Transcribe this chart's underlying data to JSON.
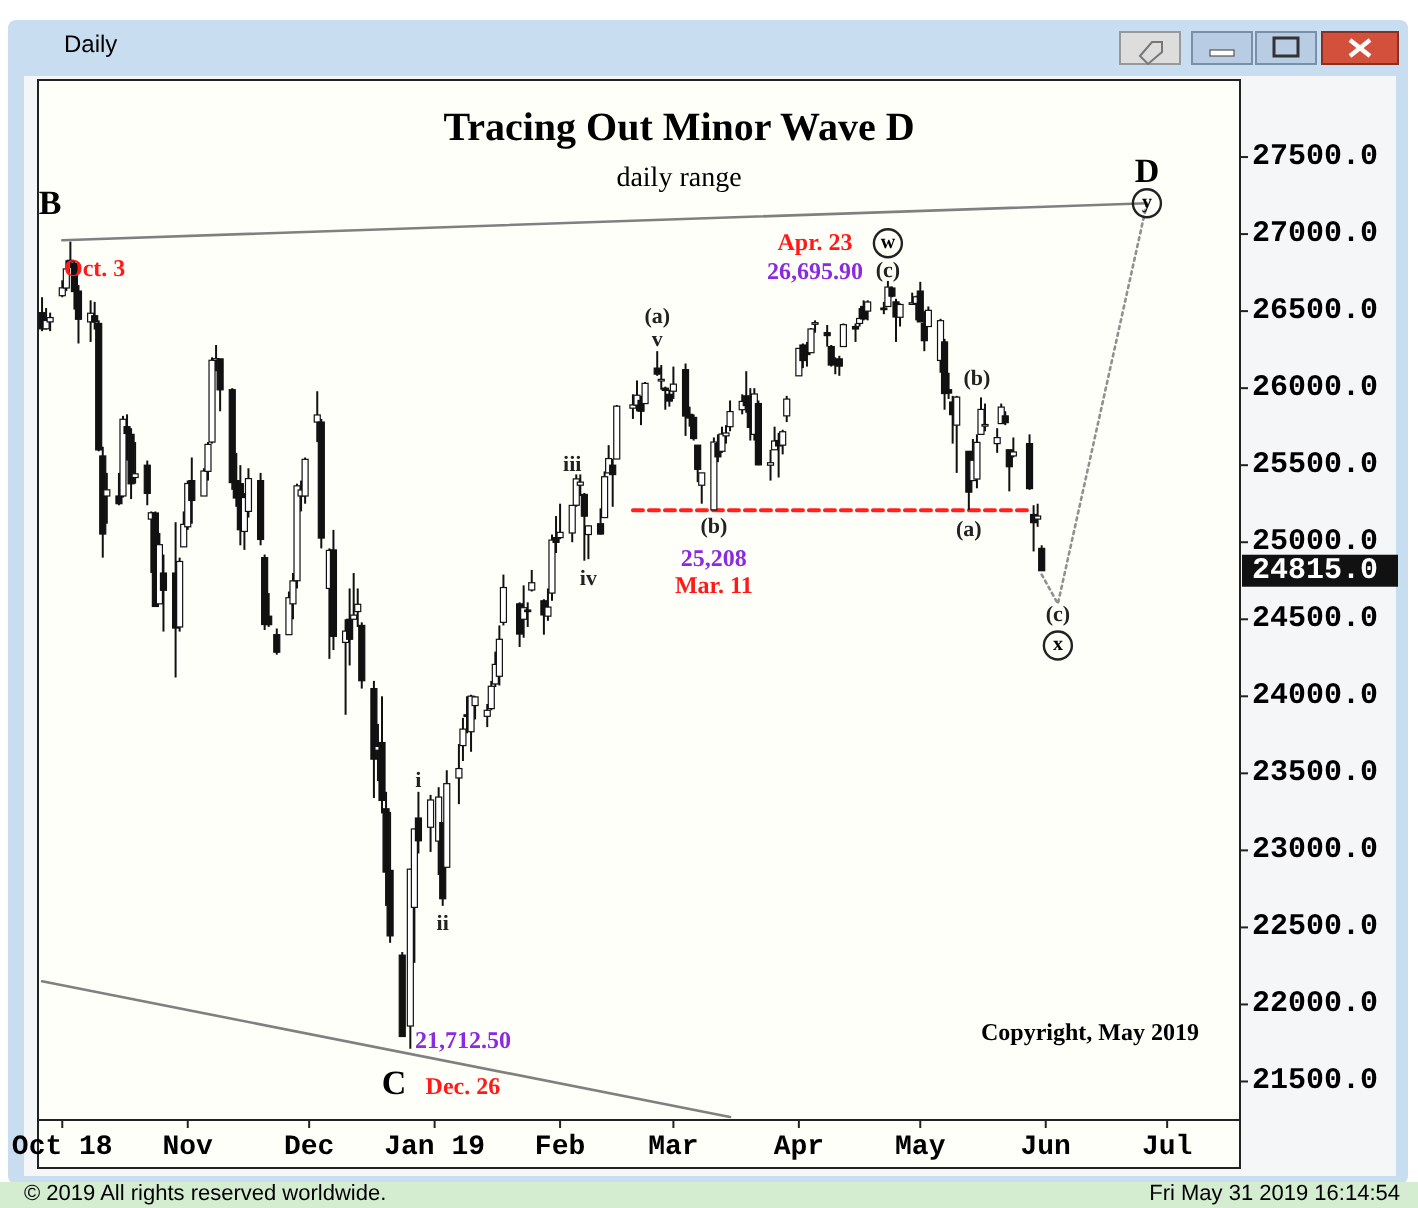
{
  "chart_data": {
    "type": "candlestick",
    "title": "Tracing Out Minor Wave D",
    "subtitle": "daily range",
    "xlim": [
      "2018-09-25",
      "2019-07-19"
    ],
    "ylim": [
      21250,
      28000
    ],
    "xticks": [
      {
        "value": "2018-10-01",
        "label": "Oct 18"
      },
      {
        "value": "2018-11-01",
        "label": "Nov"
      },
      {
        "value": "2018-12-01",
        "label": "Dec"
      },
      {
        "value": "2019-01-01",
        "label": "Jan 19"
      },
      {
        "value": "2019-02-01",
        "label": "Feb"
      },
      {
        "value": "2019-03-01",
        "label": "Mar"
      },
      {
        "value": "2019-04-01",
        "label": "Apr"
      },
      {
        "value": "2019-05-01",
        "label": "May"
      },
      {
        "value": "2019-06-01",
        "label": "Jun"
      },
      {
        "value": "2019-07-01",
        "label": "Jul"
      }
    ],
    "yticks": [
      {
        "value": 21500,
        "label": "21500.0"
      },
      {
        "value": 22000,
        "label": "22000.0"
      },
      {
        "value": 22500,
        "label": "22500.0"
      },
      {
        "value": 23000,
        "label": "23000.0"
      },
      {
        "value": 23500,
        "label": "23500.0"
      },
      {
        "value": 24000,
        "label": "24000.0"
      },
      {
        "value": 24500,
        "label": "24500.0"
      },
      {
        "value": 25000,
        "label": "25000.0"
      },
      {
        "value": 25500,
        "label": "25500.0"
      },
      {
        "value": 26000,
        "label": "26000.0"
      },
      {
        "value": 26500,
        "label": "26500.0"
      },
      {
        "value": 27000,
        "label": "27000.0"
      },
      {
        "value": 27500,
        "label": "27500.0"
      }
    ],
    "x": [
      "2018-09-26",
      "2018-09-27",
      "2018-09-28",
      "2018-10-01",
      "2018-10-02",
      "2018-10-03",
      "2018-10-04",
      "2018-10-05",
      "2018-10-08",
      "2018-10-09",
      "2018-10-10",
      "2018-10-11",
      "2018-10-12",
      "2018-10-15",
      "2018-10-16",
      "2018-10-17",
      "2018-10-18",
      "2018-10-19",
      "2018-10-22",
      "2018-10-23",
      "2018-10-24",
      "2018-10-25",
      "2018-10-26",
      "2018-10-29",
      "2018-10-30",
      "2018-10-31",
      "2018-11-01",
      "2018-11-02",
      "2018-11-05",
      "2018-11-06",
      "2018-11-07",
      "2018-11-08",
      "2018-11-09",
      "2018-11-12",
      "2018-11-13",
      "2018-11-14",
      "2018-11-15",
      "2018-11-16",
      "2018-11-19",
      "2018-11-20",
      "2018-11-21",
      "2018-11-23",
      "2018-11-26",
      "2018-11-27",
      "2018-11-28",
      "2018-11-29",
      "2018-11-30",
      "2018-12-03",
      "2018-12-04",
      "2018-12-06",
      "2018-12-07",
      "2018-12-10",
      "2018-12-11",
      "2018-12-12",
      "2018-12-13",
      "2018-12-14",
      "2018-12-17",
      "2018-12-18",
      "2018-12-19",
      "2018-12-20",
      "2018-12-21",
      "2018-12-24",
      "2018-12-26",
      "2018-12-27",
      "2018-12-28",
      "2018-12-31",
      "2019-01-02",
      "2019-01-03",
      "2019-01-04",
      "2019-01-07",
      "2019-01-08",
      "2019-01-09",
      "2019-01-10",
      "2019-01-11",
      "2019-01-14",
      "2019-01-15",
      "2019-01-16",
      "2019-01-17",
      "2019-01-18",
      "2019-01-22",
      "2019-01-23",
      "2019-01-24",
      "2019-01-25",
      "2019-01-28",
      "2019-01-29",
      "2019-01-30",
      "2019-01-31",
      "2019-02-01",
      "2019-02-04",
      "2019-02-05",
      "2019-02-06",
      "2019-02-07",
      "2019-02-08",
      "2019-02-11",
      "2019-02-12",
      "2019-02-13",
      "2019-02-14",
      "2019-02-15",
      "2019-02-19",
      "2019-02-20",
      "2019-02-21",
      "2019-02-22",
      "2019-02-25",
      "2019-02-26",
      "2019-02-27",
      "2019-02-28",
      "2019-03-01",
      "2019-03-04",
      "2019-03-05",
      "2019-03-06",
      "2019-03-07",
      "2019-03-08",
      "2019-03-11",
      "2019-03-12",
      "2019-03-13",
      "2019-03-14",
      "2019-03-15",
      "2019-03-18",
      "2019-03-19",
      "2019-03-20",
      "2019-03-21",
      "2019-03-22",
      "2019-03-25",
      "2019-03-26",
      "2019-03-27",
      "2019-03-28",
      "2019-03-29",
      "2019-04-01",
      "2019-04-02",
      "2019-04-03",
      "2019-04-04",
      "2019-04-05",
      "2019-04-08",
      "2019-04-09",
      "2019-04-10",
      "2019-04-11",
      "2019-04-12",
      "2019-04-15",
      "2019-04-16",
      "2019-04-17",
      "2019-04-18",
      "2019-04-22",
      "2019-04-23",
      "2019-04-24",
      "2019-04-25",
      "2019-04-26",
      "2019-04-29",
      "2019-04-30",
      "2019-05-01",
      "2019-05-02",
      "2019-05-03",
      "2019-05-06",
      "2019-05-07",
      "2019-05-08",
      "2019-05-09",
      "2019-05-10",
      "2019-05-13",
      "2019-05-14",
      "2019-05-15",
      "2019-05-16",
      "2019-05-17",
      "2019-05-20",
      "2019-05-21",
      "2019-05-22",
      "2019-05-23",
      "2019-05-24",
      "2019-05-28",
      "2019-05-29",
      "2019-05-30",
      "2019-05-31"
    ],
    "ohlc": [
      [
        26490,
        26590,
        26370,
        26385
      ],
      [
        26385,
        26520,
        26380,
        26439
      ],
      [
        26430,
        26490,
        26370,
        26458
      ],
      [
        26600,
        26700,
        26590,
        26651
      ],
      [
        26650,
        26830,
        26630,
        26774
      ],
      [
        26830,
        26951,
        26780,
        26828
      ],
      [
        26810,
        26830,
        26510,
        26627
      ],
      [
        26630,
        26670,
        26290,
        26447
      ],
      [
        26430,
        26570,
        26300,
        26486
      ],
      [
        26470,
        26560,
        26380,
        26430
      ],
      [
        26420,
        26440,
        25590,
        25599
      ],
      [
        25560,
        25620,
        24900,
        25053
      ],
      [
        25300,
        25450,
        25120,
        25340
      ],
      [
        25300,
        25450,
        25240,
        25250
      ],
      [
        25300,
        25820,
        25290,
        25798
      ],
      [
        25750,
        25830,
        25530,
        25706
      ],
      [
        25700,
        25740,
        25280,
        25379
      ],
      [
        25420,
        25650,
        25380,
        25444
      ],
      [
        25500,
        25530,
        25240,
        25317
      ],
      [
        25150,
        25200,
        24800,
        25191
      ],
      [
        25190,
        25200,
        24580,
        24583
      ],
      [
        24600,
        25060,
        24600,
        24984
      ],
      [
        24800,
        24920,
        24420,
        24688
      ],
      [
        24800,
        25130,
        24122,
        24443
      ],
      [
        24450,
        24900,
        24420,
        24875
      ],
      [
        24970,
        25200,
        24970,
        25116
      ],
      [
        25100,
        25400,
        25080,
        25381
      ],
      [
        25400,
        25550,
        25120,
        25271
      ],
      [
        25300,
        25480,
        25300,
        25462
      ],
      [
        25460,
        25650,
        25400,
        25635
      ],
      [
        25650,
        26200,
        25640,
        26181
      ],
      [
        26180,
        26280,
        26110,
        26191
      ],
      [
        26190,
        26190,
        25850,
        25989
      ],
      [
        25990,
        26000,
        25340,
        25387
      ],
      [
        25400,
        25580,
        25230,
        25287
      ],
      [
        25380,
        25500,
        24980,
        25081
      ],
      [
        25070,
        25320,
        24950,
        25290
      ],
      [
        25200,
        25480,
        25160,
        25413
      ],
      [
        25400,
        25450,
        24980,
        25018
      ],
      [
        24900,
        24920,
        24430,
        24466
      ],
      [
        24520,
        24670,
        24450,
        24465
      ],
      [
        24400,
        24440,
        24270,
        24286
      ],
      [
        24400,
        24680,
        24400,
        24640
      ],
      [
        24600,
        24800,
        24500,
        24749
      ],
      [
        24750,
        25380,
        24700,
        25366
      ],
      [
        25300,
        25400,
        25200,
        25339
      ],
      [
        25300,
        25550,
        25250,
        25538
      ],
      [
        25780,
        25980,
        25650,
        25826
      ],
      [
        25780,
        25800,
        24960,
        25027
      ],
      [
        24700,
        24960,
        24243,
        24947
      ],
      [
        24950,
        25080,
        24300,
        24389
      ],
      [
        24350,
        24500,
        23880,
        24423
      ],
      [
        24500,
        24700,
        24200,
        24370
      ],
      [
        24500,
        24800,
        24500,
        24527
      ],
      [
        24550,
        24700,
        24450,
        24597
      ],
      [
        24460,
        24480,
        24050,
        24101
      ],
      [
        24050,
        24100,
        23340,
        23592
      ],
      [
        23650,
        23820,
        23450,
        23675
      ],
      [
        23700,
        24000,
        23240,
        23324
      ],
      [
        23270,
        23380,
        22640,
        22859
      ],
      [
        22870,
        23250,
        22400,
        22445
      ],
      [
        22320,
        22340,
        21790,
        21792
      ],
      [
        21860,
        22880,
        21712.5,
        22878
      ],
      [
        22630,
        23140,
        22270,
        23139
      ],
      [
        23210,
        23380,
        22980,
        23062
      ],
      [
        23150,
        23360,
        22990,
        23327
      ],
      [
        23060,
        23410,
        22840,
        23346
      ],
      [
        23180,
        23180,
        22640,
        22686
      ],
      [
        22890,
        23520,
        22890,
        23433
      ],
      [
        23470,
        23690,
        23300,
        23531
      ],
      [
        23680,
        23860,
        23580,
        23787
      ],
      [
        23880,
        24000,
        23760,
        23879
      ],
      [
        23770,
        24010,
        23640,
        24001
      ],
      [
        23940,
        24000,
        23850,
        23996
      ],
      [
        23870,
        23950,
        23800,
        23909
      ],
      [
        23920,
        24100,
        23910,
        24065
      ],
      [
        24080,
        24290,
        24060,
        24207
      ],
      [
        24130,
        24460,
        24070,
        24370
      ],
      [
        24480,
        24790,
        24460,
        24706
      ],
      [
        24600,
        24610,
        24320,
        24404
      ],
      [
        24500,
        24720,
        24380,
        24575
      ],
      [
        24560,
        24610,
        24450,
        24553
      ],
      [
        24690,
        24820,
        24680,
        24737
      ],
      [
        24620,
        24630,
        24400,
        24528
      ],
      [
        24520,
        24700,
        24490,
        24579
      ],
      [
        24670,
        25050,
        24620,
        25014
      ],
      [
        25030,
        25170,
        24930,
        24999
      ],
      [
        25030,
        25250,
        25020,
        25064
      ],
      [
        25060,
        25240,
        25000,
        25239
      ],
      [
        25240,
        25440,
        25230,
        25411
      ],
      [
        25370,
        25440,
        25300,
        25390
      ],
      [
        25310,
        25320,
        24880,
        25169
      ],
      [
        25050,
        25110,
        24890,
        25106
      ],
      [
        25120,
        25220,
        25050,
        25053
      ],
      [
        25160,
        25460,
        25160,
        25425
      ],
      [
        25450,
        25630,
        25450,
        25543
      ],
      [
        25500,
        25540,
        25230,
        25439
      ],
      [
        25540,
        25890,
        25540,
        25883
      ],
      [
        25870,
        25960,
        25800,
        25891
      ],
      [
        25890,
        26050,
        25850,
        25954
      ],
      [
        25920,
        25950,
        25760,
        25850
      ],
      [
        25900,
        26040,
        25900,
        26031
      ],
      [
        26130,
        26240,
        26080,
        26091
      ],
      [
        26050,
        26150,
        25990,
        26057
      ],
      [
        26000,
        26010,
        25860,
        25985
      ],
      [
        25960,
        25990,
        25880,
        25916
      ],
      [
        25980,
        26140,
        25930,
        26026
      ],
      [
        26120,
        26160,
        25690,
        25819
      ],
      [
        25830,
        25880,
        25750,
        25806
      ],
      [
        25810,
        25830,
        25660,
        25673
      ],
      [
        25630,
        25630,
        25390,
        25473
      ],
      [
        25370,
        25450,
        25250,
        25450
      ],
      [
        25210,
        25680,
        25208,
        25650
      ],
      [
        25640,
        25700,
        25520,
        25554
      ],
      [
        25590,
        25750,
        25580,
        25702
      ],
      [
        25690,
        25760,
        25640,
        25709
      ],
      [
        25750,
        25920,
        25720,
        25848
      ],
      [
        25860,
        25960,
        25830,
        25914
      ],
      [
        25950,
        26110,
        25840,
        25887
      ],
      [
        25890,
        26000,
        25660,
        25745
      ],
      [
        25700,
        26000,
        25660,
        25962
      ],
      [
        25900,
        25920,
        25500,
        25502
      ],
      [
        25500,
        25600,
        25400,
        25516
      ],
      [
        25600,
        25750,
        25600,
        25657
      ],
      [
        25660,
        25710,
        25420,
        25625
      ],
      [
        25630,
        25730,
        25570,
        25717
      ],
      [
        25820,
        25950,
        25780,
        25929
      ],
      [
        26080,
        26260,
        26080,
        26258
      ],
      [
        26280,
        26290,
        26130,
        26179
      ],
      [
        26270,
        26300,
        26140,
        26218
      ],
      [
        26230,
        26390,
        26230,
        26384
      ],
      [
        26420,
        26440,
        26360,
        26425
      ],
      [
        26360,
        26410,
        26270,
        26341
      ],
      [
        26270,
        26280,
        26140,
        26150
      ],
      [
        26180,
        26200,
        26090,
        26157
      ],
      [
        26190,
        26210,
        26080,
        26143
      ],
      [
        26270,
        26420,
        26270,
        26412
      ],
      [
        26400,
        26420,
        26300,
        26384
      ],
      [
        26420,
        26520,
        26400,
        26452
      ],
      [
        26530,
        26570,
        26440,
        26449
      ],
      [
        26500,
        26570,
        26440,
        26559
      ],
      [
        26520,
        26560,
        26480,
        26511
      ],
      [
        26530,
        26695.9,
        26530,
        26656
      ],
      [
        26650,
        26660,
        26590,
        26597
      ],
      [
        26560,
        26580,
        26300,
        26462
      ],
      [
        26460,
        26550,
        26400,
        26543
      ],
      [
        26550,
        26620,
        26540,
        26554
      ],
      [
        26550,
        26600,
        26440,
        26593
      ],
      [
        26630,
        26690,
        26430,
        26430
      ],
      [
        26420,
        26500,
        26240,
        26308
      ],
      [
        26400,
        26530,
        26400,
        26505
      ],
      [
        26180,
        26450,
        26100,
        26438
      ],
      [
        26300,
        26320,
        25860,
        25965
      ],
      [
        25990,
        26100,
        25930,
        25968
      ],
      [
        25910,
        25950,
        25640,
        25828
      ],
      [
        25760,
        25950,
        25450,
        25942
      ],
      [
        25590,
        25590,
        25210,
        25325
      ],
      [
        25400,
        25670,
        25400,
        25532
      ],
      [
        25410,
        25700,
        25350,
        25648
      ],
      [
        25700,
        25940,
        25700,
        25862
      ],
      [
        25760,
        25900,
        25720,
        25764
      ],
      [
        25640,
        25740,
        25580,
        25679
      ],
      [
        25770,
        25900,
        25770,
        25877
      ],
      [
        25820,
        25850,
        25760,
        25776
      ],
      [
        25600,
        25600,
        25330,
        25490
      ],
      [
        25560,
        25680,
        25550,
        25586
      ],
      [
        25640,
        25700,
        25340,
        25348
      ],
      [
        25180,
        25240,
        24940,
        25127
      ],
      [
        25150,
        25250,
        25100,
        25170
      ],
      [
        24960,
        24980,
        24815,
        24815
      ]
    ],
    "series": [
      {
        "type": "line",
        "color": "#808080",
        "line_style": "solid",
        "x": [
          "2018-10-01",
          "2019-06-26"
        ],
        "values": [
          26960,
          27200
        ]
      },
      {
        "type": "line",
        "color": "#808080",
        "line_style": "solid",
        "x": [
          "2018-09-26",
          "2019-03-15"
        ],
        "values": [
          22150,
          21270
        ]
      },
      {
        "type": "line",
        "color": "#ff2020",
        "line_style": "dashed",
        "x": [
          "2019-02-19",
          "2019-05-28"
        ],
        "values": [
          25208,
          25208
        ]
      },
      {
        "type": "line",
        "color": "#909090",
        "line_style": "dotted",
        "x": [
          "2019-05-31",
          "2019-06-04",
          "2019-06-26"
        ],
        "values": [
          24790,
          24600,
          27200
        ]
      }
    ],
    "annotations": [
      "B",
      "Oct. 3",
      "C",
      "Dec. 26",
      "21,712.50",
      "i",
      "ii",
      "iii",
      "iv",
      "(a)",
      "v",
      "(b)",
      "25,208",
      "Mar. 11",
      "Apr. 23",
      "26,695.90",
      {
        "text": "w",
        "x": "2019-04-23",
        "y": 26940
      },
      {
        "text": "(c)",
        "x": "2019-04-23",
        "y": 26760
      },
      "(b)",
      "(a)",
      "D",
      {
        "text": "y",
        "x": "2019-06-26",
        "y": 27200
      },
      "(c)",
      {
        "text": "x",
        "x": "2019-06-04",
        "y": 24330
      },
      "24815.0",
      "Copyright, May 2019",
      "Daily",
      "© 2019 All rights reserved worldwide.",
      "Fri May 31 2019 16:14:54"
    ]
  }
}
